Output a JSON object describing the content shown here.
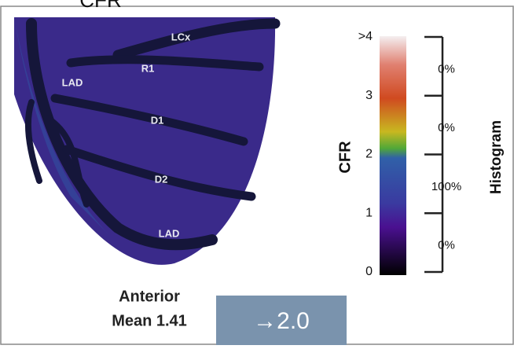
{
  "title": "CFR",
  "heart_labels": [
    "LCx",
    "R1",
    "LAD",
    "D1",
    "D2",
    "LAD"
  ],
  "caption": [
    "Anterior",
    "Mean 1.41"
  ],
  "button": "→2.0",
  "colorbar": {
    "label": "CFR",
    "ticks": [
      ">4",
      "3",
      "2",
      "1",
      "0"
    ]
  },
  "histogram": {
    "label": "Histogram",
    "values": [
      "0%",
      "0%",
      "100%",
      "0%"
    ]
  }
}
